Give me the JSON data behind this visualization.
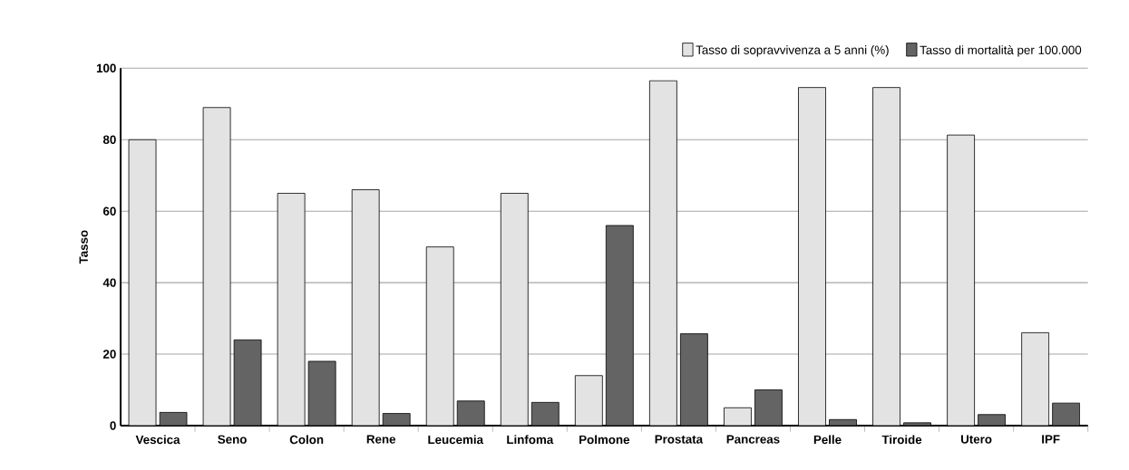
{
  "chart_data": {
    "type": "bar",
    "ylabel": "Tasso",
    "categories": [
      "Vescica",
      "Seno",
      "Colon",
      "Rene",
      "Leucemia",
      "Linfoma",
      "Polmone",
      "Prostata",
      "Pancreas",
      "Pelle",
      "Tiroide",
      "Utero",
      "IPF"
    ],
    "series": [
      {
        "name": "Tasso di sopravvivenza a 5 anni (%)",
        "color": "#e3e3e3",
        "values": [
          80,
          89,
          65,
          66,
          50,
          65,
          14,
          96.5,
          5,
          94.6,
          94.6,
          81.3,
          26
        ]
      },
      {
        "name": "Tasso di mortalità per 100.000",
        "color": "#646464",
        "values": [
          3.7,
          24,
          18,
          3.4,
          6.9,
          6.5,
          56,
          25.7,
          10,
          1.7,
          0.8,
          3.1,
          6.3
        ]
      }
    ],
    "ylim": [
      0,
      100
    ],
    "yticks": [
      0,
      20,
      40,
      60,
      80,
      100
    ],
    "grid": "y",
    "legend": "top right"
  }
}
